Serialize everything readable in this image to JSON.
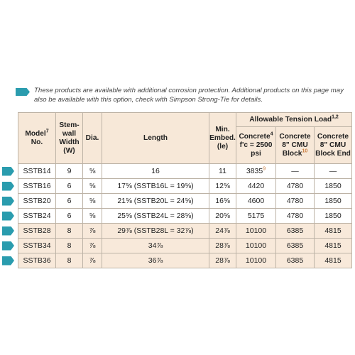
{
  "note": "These products are available with additional corrosion protection. Additional products on this page may also be available with this option, check with Simpson Strong-Tie for details.",
  "headers": {
    "model": "Model",
    "model_sup": "7",
    "model_no": "No.",
    "stem_wall": "Stem-wall Width (W)",
    "dia": "Dia.",
    "length": "Length",
    "min_embed": "Min. Embed. (le)",
    "allowable": "Allowable Tension Load",
    "allowable_sup": "1,2",
    "concrete": "Concrete",
    "concrete_sup": "4",
    "concrete_fc": "f'c = 2500 psi",
    "cmu_block": "Concrete 8\" CMU Block",
    "cmu_block_sup": "10",
    "cmu_block_end": "Concrete 8\" CMU Block End"
  },
  "rows": [
    {
      "model": "SSTB14",
      "width": "9",
      "dia": "⅝",
      "length": "16",
      "embed": "11",
      "concrete": "3835",
      "concrete_sup": "9",
      "cmu": "—",
      "cmu_end": "—"
    },
    {
      "model": "SSTB16",
      "width": "6",
      "dia": "⅝",
      "length": "17⅝ (SSTB16L = 19⅝)",
      "embed": "12⅝",
      "concrete": "4420",
      "concrete_sup": "",
      "cmu": "4780",
      "cmu_end": "1850"
    },
    {
      "model": "SSTB20",
      "width": "6",
      "dia": "⅝",
      "length": "21⅝ (SSTB20L = 24⅝)",
      "embed": "16⅝",
      "concrete": "4600",
      "concrete_sup": "",
      "cmu": "4780",
      "cmu_end": "1850"
    },
    {
      "model": "SSTB24",
      "width": "6",
      "dia": "⅝",
      "length": "25⅝ (SSTB24L = 28⅝)",
      "embed": "20⅝",
      "concrete": "5175",
      "concrete_sup": "",
      "cmu": "4780",
      "cmu_end": "1850"
    },
    {
      "model": "SSTB28",
      "width": "8",
      "dia": "⅞",
      "length": "29⅞ (SSTB28L = 32⅞)",
      "embed": "24⅞",
      "concrete": "10100",
      "concrete_sup": "",
      "cmu": "6385",
      "cmu_end": "4815"
    },
    {
      "model": "SSTB34",
      "width": "8",
      "dia": "⅞",
      "length": "34⅞",
      "embed": "28⅞",
      "concrete": "10100",
      "concrete_sup": "",
      "cmu": "6385",
      "cmu_end": "4815"
    },
    {
      "model": "SSTB36",
      "width": "8",
      "dia": "⅞",
      "length": "36⅞",
      "embed": "28⅞",
      "concrete": "10100",
      "concrete_sup": "",
      "cmu": "6385",
      "cmu_end": "4815"
    }
  ],
  "colors": {
    "accent": "#2a9cae",
    "header_bg": "#f7e8d8",
    "tan_row": "#f8e9da"
  }
}
